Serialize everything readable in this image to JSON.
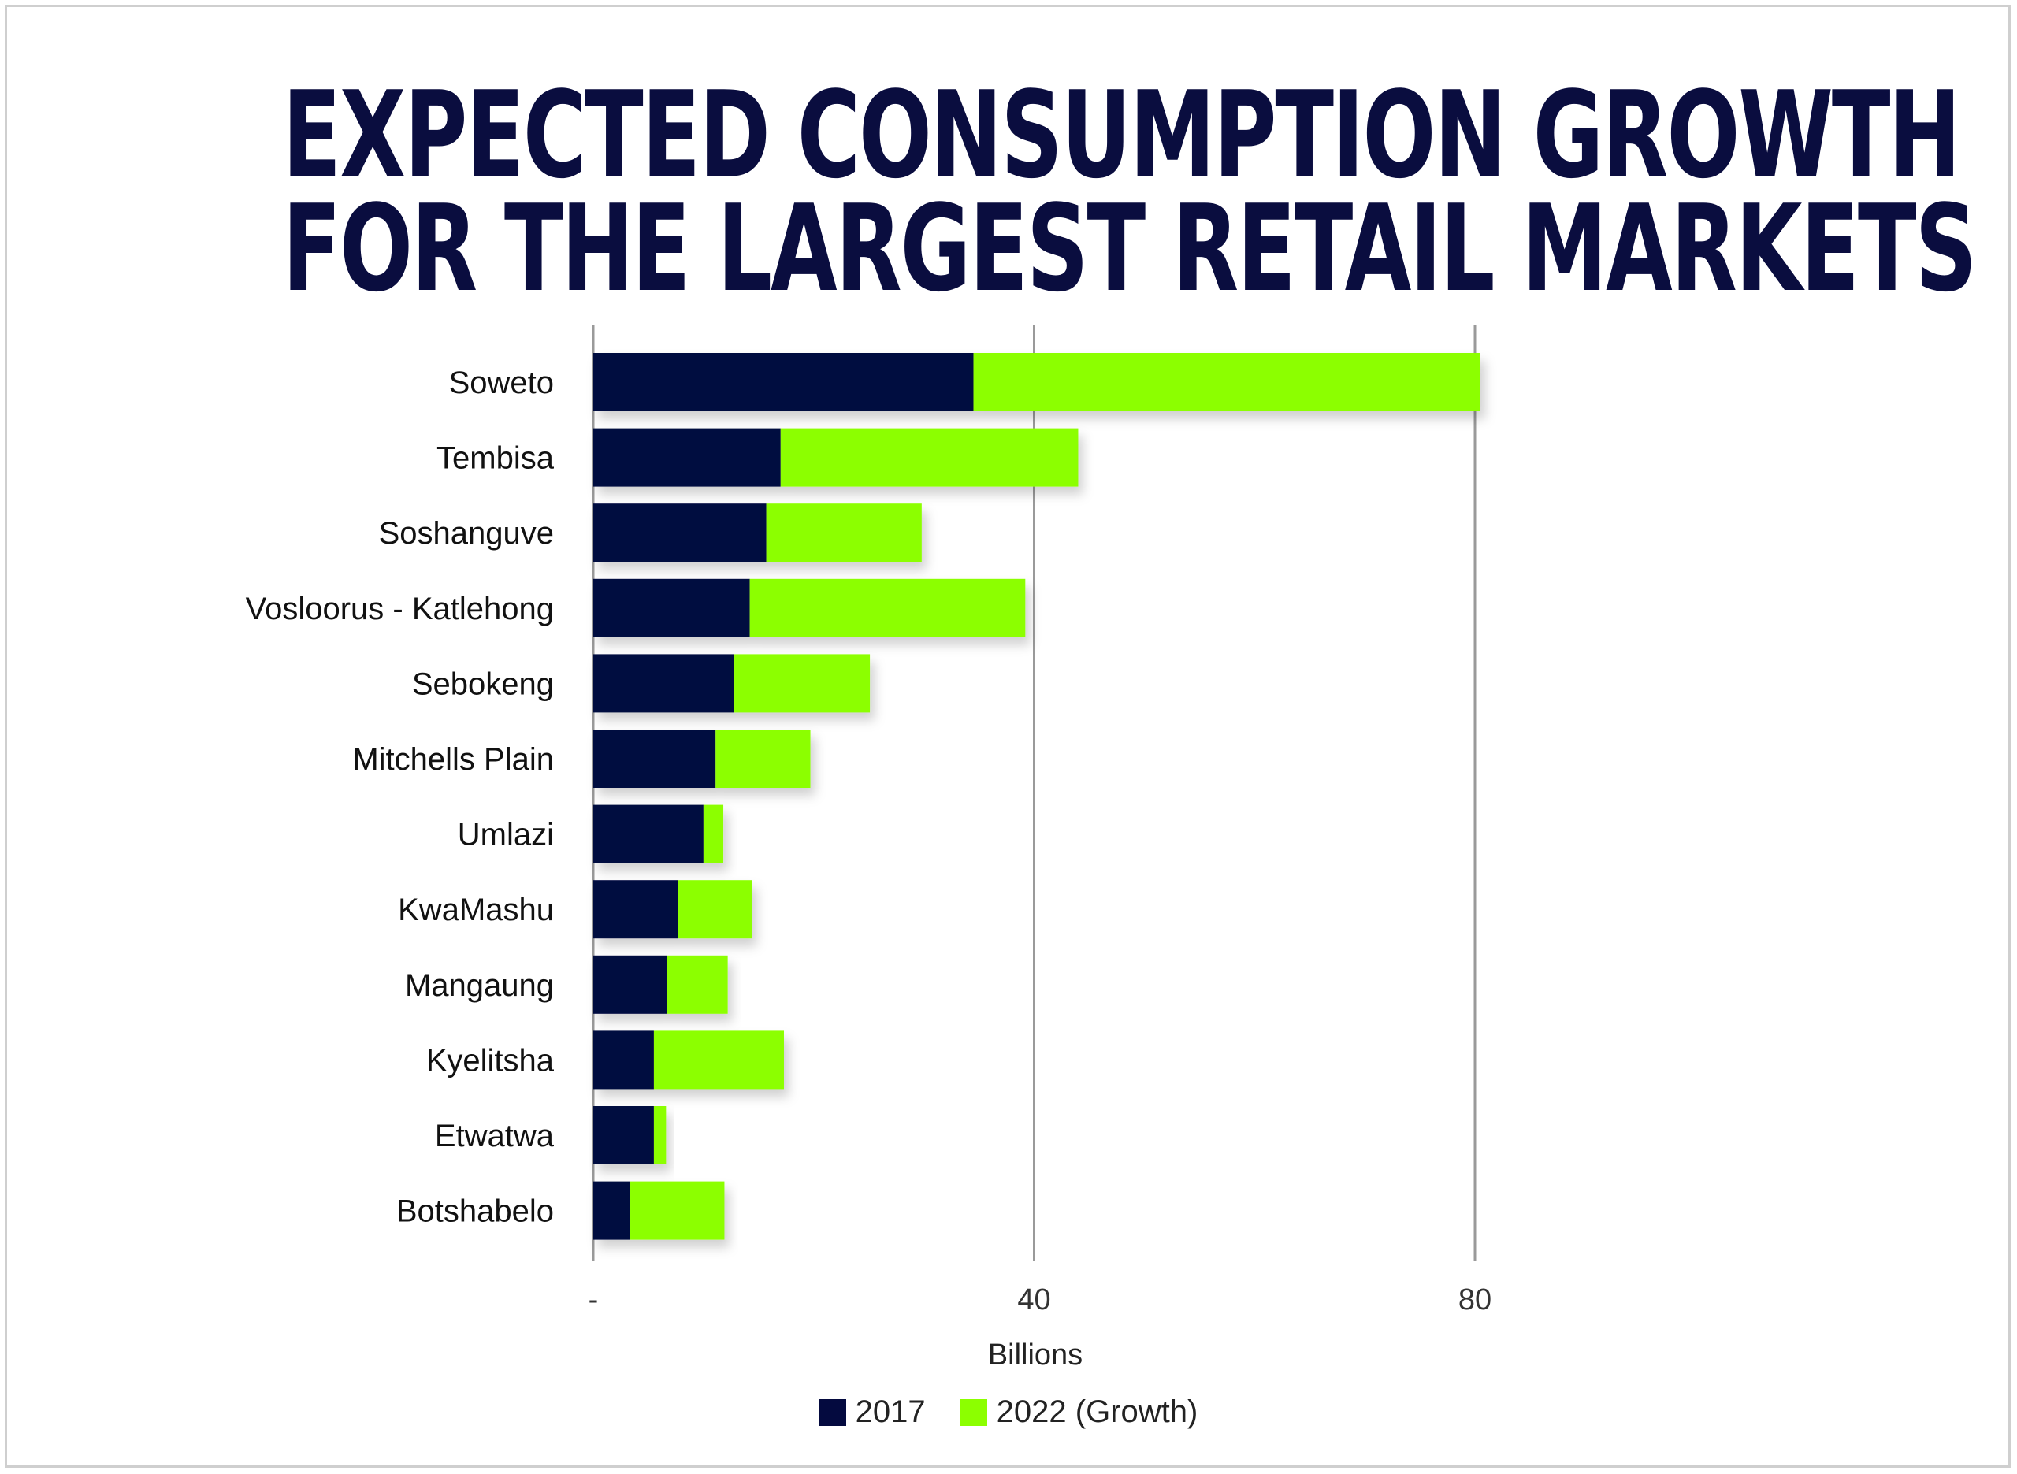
{
  "title_lines": [
    "EXPECTED CONSUMPTION GROWTH",
    "FOR THE LARGEST RETAIL MARKETS"
  ],
  "colors": {
    "base": "#040a3f",
    "growth": "#8cff00",
    "grid": "#9a9a9a",
    "title": "#0a0d3f"
  },
  "chart_data": {
    "type": "bar",
    "orientation": "horizontal",
    "stacked": true,
    "title": "EXPECTED CONSUMPTION GROWTH FOR THE LARGEST RETAIL MARKETS",
    "categories": [
      "Soweto",
      "Tembisa",
      "Soshanguve",
      "Vosloorus - Katlehong",
      "Sebokeng",
      "Mitchells Plain",
      "Umlazi",
      "KwaMashu",
      "Mangaung",
      "Kyelitsha",
      "Etwatwa",
      "Botshabelo"
    ],
    "series": [
      {
        "name": "2017",
        "values": [
          34.5,
          17,
          15.7,
          14.2,
          12.8,
          11.1,
          10,
          7.7,
          6.7,
          5.5,
          5.5,
          3.3
        ]
      },
      {
        "name": "2022 (Growth)",
        "values": [
          46,
          27,
          14.1,
          25,
          12.3,
          8.6,
          1.8,
          6.7,
          5.5,
          11.8,
          1.1,
          8.6
        ]
      }
    ],
    "xlabel": "Billions",
    "xticks": [
      0,
      40,
      80
    ],
    "xtick_labels": [
      "-",
      "40",
      "80"
    ],
    "xlim": [
      0,
      80
    ],
    "grid": true,
    "legend_position": "bottom-center"
  }
}
